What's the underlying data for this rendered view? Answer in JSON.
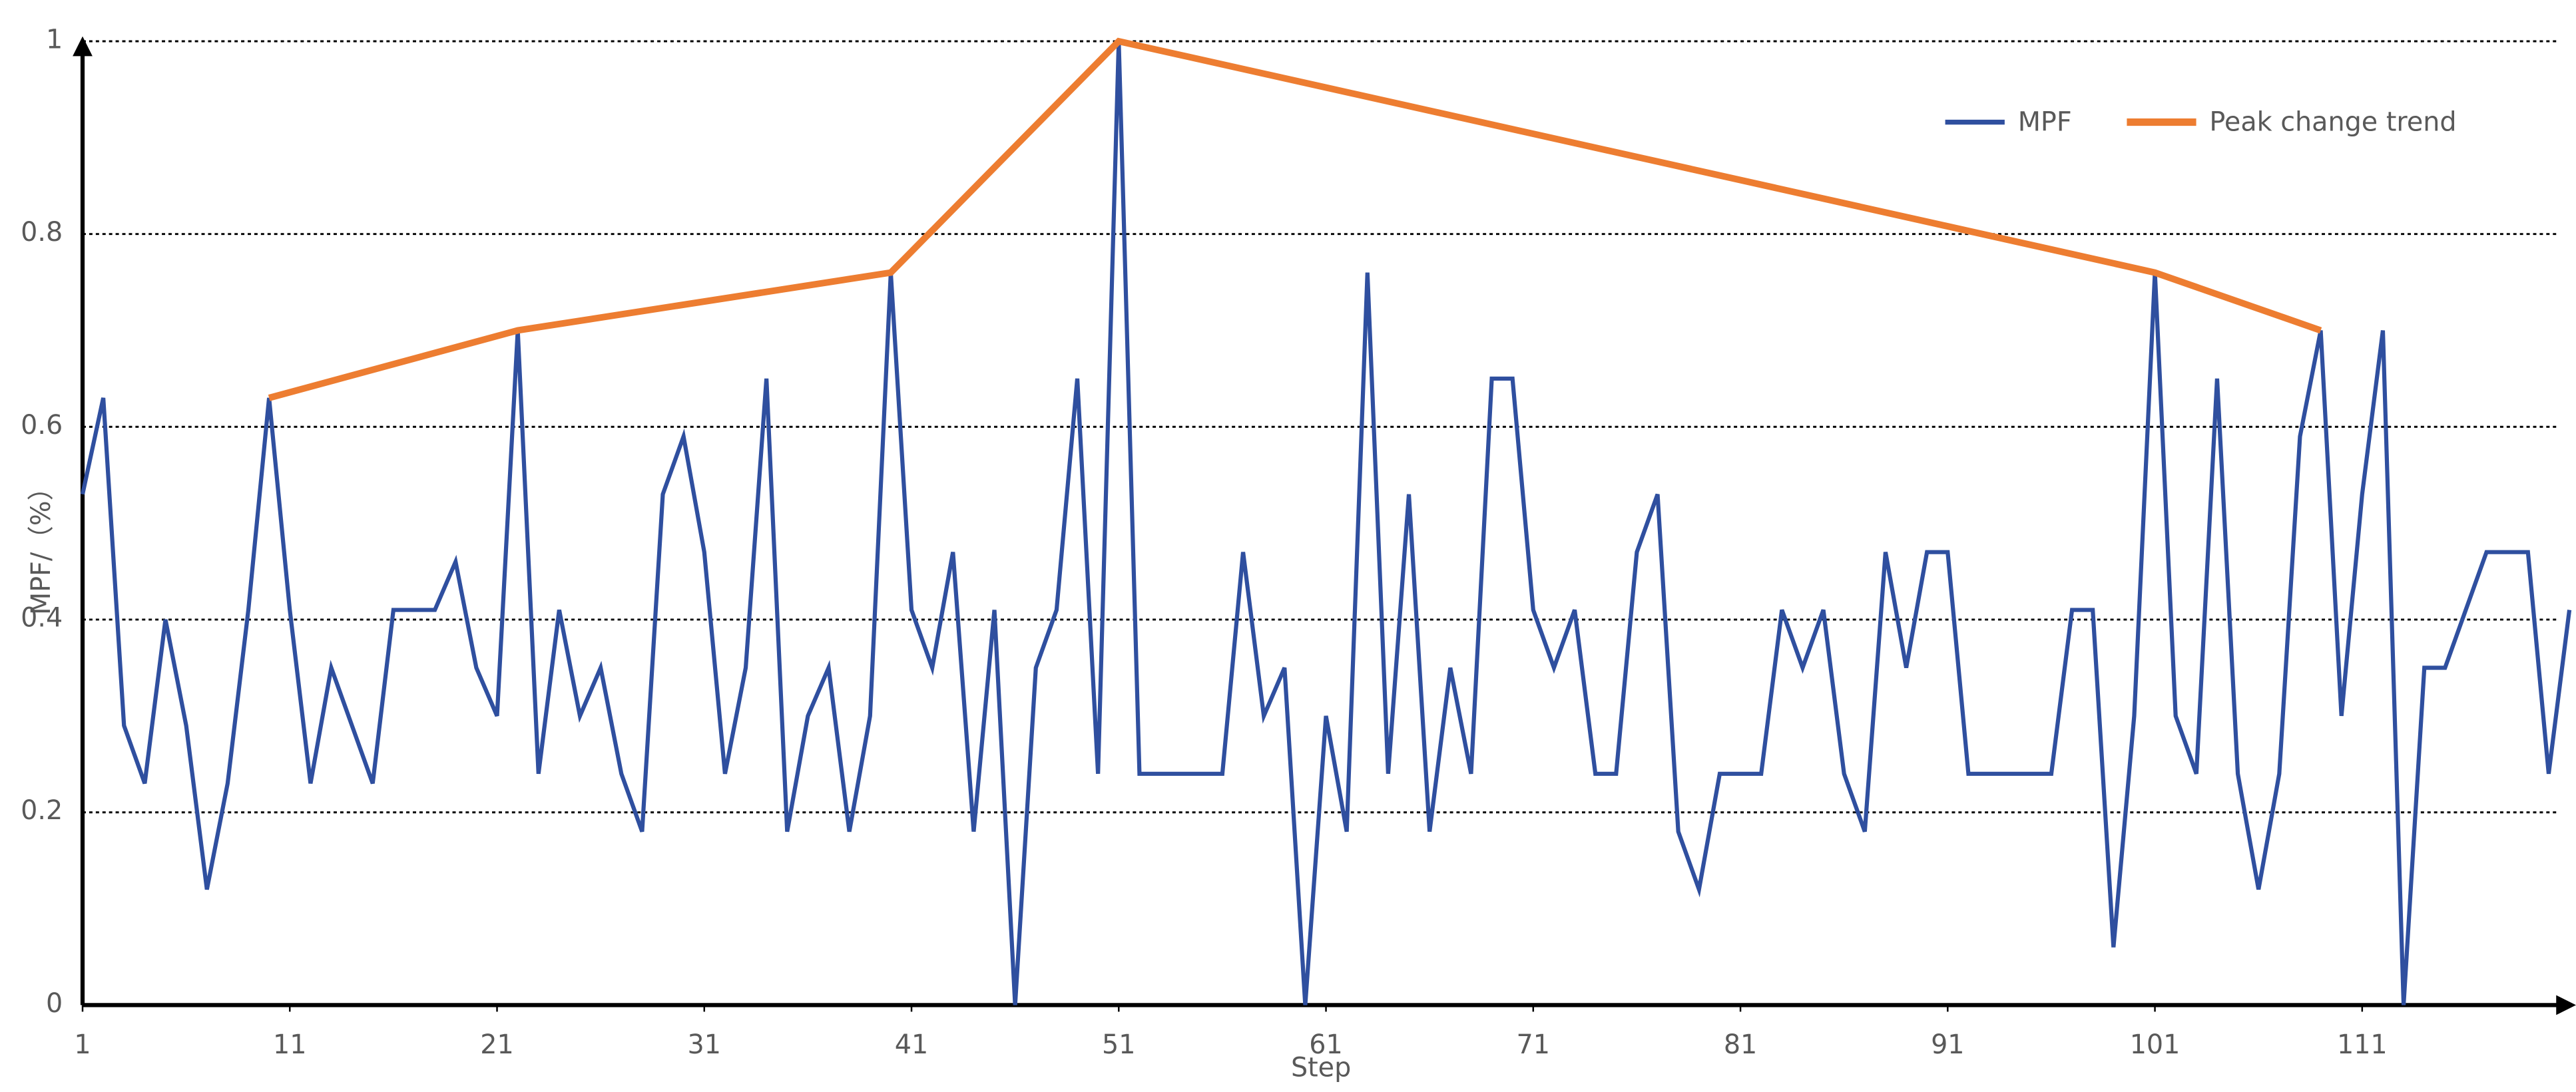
{
  "chart_data": {
    "type": "line",
    "xlabel": "Step",
    "ylabel": "MPF/（%）",
    "x": [
      1,
      2,
      3,
      4,
      5,
      6,
      7,
      8,
      9,
      10,
      11,
      12,
      13,
      14,
      15,
      16,
      17,
      18,
      19,
      20,
      21,
      22,
      23,
      24,
      25,
      26,
      27,
      28,
      29,
      30,
      31,
      32,
      33,
      34,
      35,
      36,
      37,
      38,
      39,
      40,
      41,
      42,
      43,
      44,
      45,
      46,
      47,
      48,
      49,
      50,
      51,
      52,
      53,
      54,
      55,
      56,
      57,
      58,
      59,
      60,
      61,
      62,
      63,
      64,
      65,
      66,
      67,
      68,
      69,
      70,
      71,
      72,
      73,
      74,
      75,
      76,
      77,
      78,
      79,
      80,
      81,
      82,
      83,
      84,
      85,
      86,
      87,
      88,
      89,
      90,
      91,
      92,
      93,
      94,
      95,
      96,
      97,
      98,
      99,
      100,
      101,
      102,
      103,
      104,
      105,
      106,
      107,
      108,
      109,
      110,
      111,
      112,
      113,
      114,
      115,
      116,
      117,
      118,
      119,
      120,
      121
    ],
    "series": [
      {
        "name": "MPF",
        "color": "#2f4f9f",
        "values": [
          0.53,
          0.63,
          0.29,
          0.23,
          0.4,
          0.29,
          0.12,
          0.23,
          0.41,
          0.63,
          0.41,
          0.23,
          0.35,
          0.29,
          0.23,
          0.41,
          0.41,
          0.41,
          0.46,
          0.35,
          0.3,
          0.7,
          0.24,
          0.41,
          0.3,
          0.35,
          0.24,
          0.18,
          0.53,
          0.59,
          0.47,
          0.24,
          0.35,
          0.65,
          0.18,
          0.3,
          0.35,
          0.18,
          0.3,
          0.76,
          0.41,
          0.35,
          0.47,
          0.18,
          0.41,
          0,
          0.35,
          0.41,
          0.65,
          0.24,
          1,
          0.24,
          0.24,
          0.24,
          0.24,
          0.24,
          0.47,
          0.3,
          0.35,
          0,
          0.3,
          0.18,
          0.76,
          0.24,
          0.53,
          0.18,
          0.35,
          0.24,
          0.65,
          0.65,
          0.41,
          0.35,
          0.41,
          0.24,
          0.24,
          0.47,
          0.53,
          0.18,
          0.12,
          0.24,
          0.24,
          0.24,
          0.41,
          0.35,
          0.41,
          0.24,
          0.18,
          0.47,
          0.35,
          0.47,
          0.47,
          0.24,
          0.24,
          0.24,
          0.24,
          0.24,
          0.41,
          0.41,
          0.06,
          0.3,
          0.76,
          0.3,
          0.24,
          0.65,
          0.24,
          0.12,
          0.24,
          0.59,
          0.7,
          0.3,
          0.53,
          0.7,
          0,
          0.35,
          0.35,
          0.41,
          0.47,
          0.47,
          0.47,
          0.24,
          0.41
        ]
      },
      {
        "name": "Peak change trend",
        "color": "#ed7d31",
        "x": [
          10,
          22,
          40,
          51,
          101,
          109
        ],
        "values": [
          0.63,
          0.7,
          0.76,
          1,
          0.76,
          0.7
        ]
      }
    ],
    "xlim": [
      1,
      121
    ],
    "xticks": [
      1,
      11,
      21,
      31,
      41,
      51,
      61,
      71,
      81,
      91,
      101,
      111
    ],
    "ylim": [
      0,
      1
    ],
    "yticks": [
      0,
      0.2,
      0.4,
      0.6,
      0.8,
      1
    ],
    "grid": true,
    "legend": "upper right"
  }
}
